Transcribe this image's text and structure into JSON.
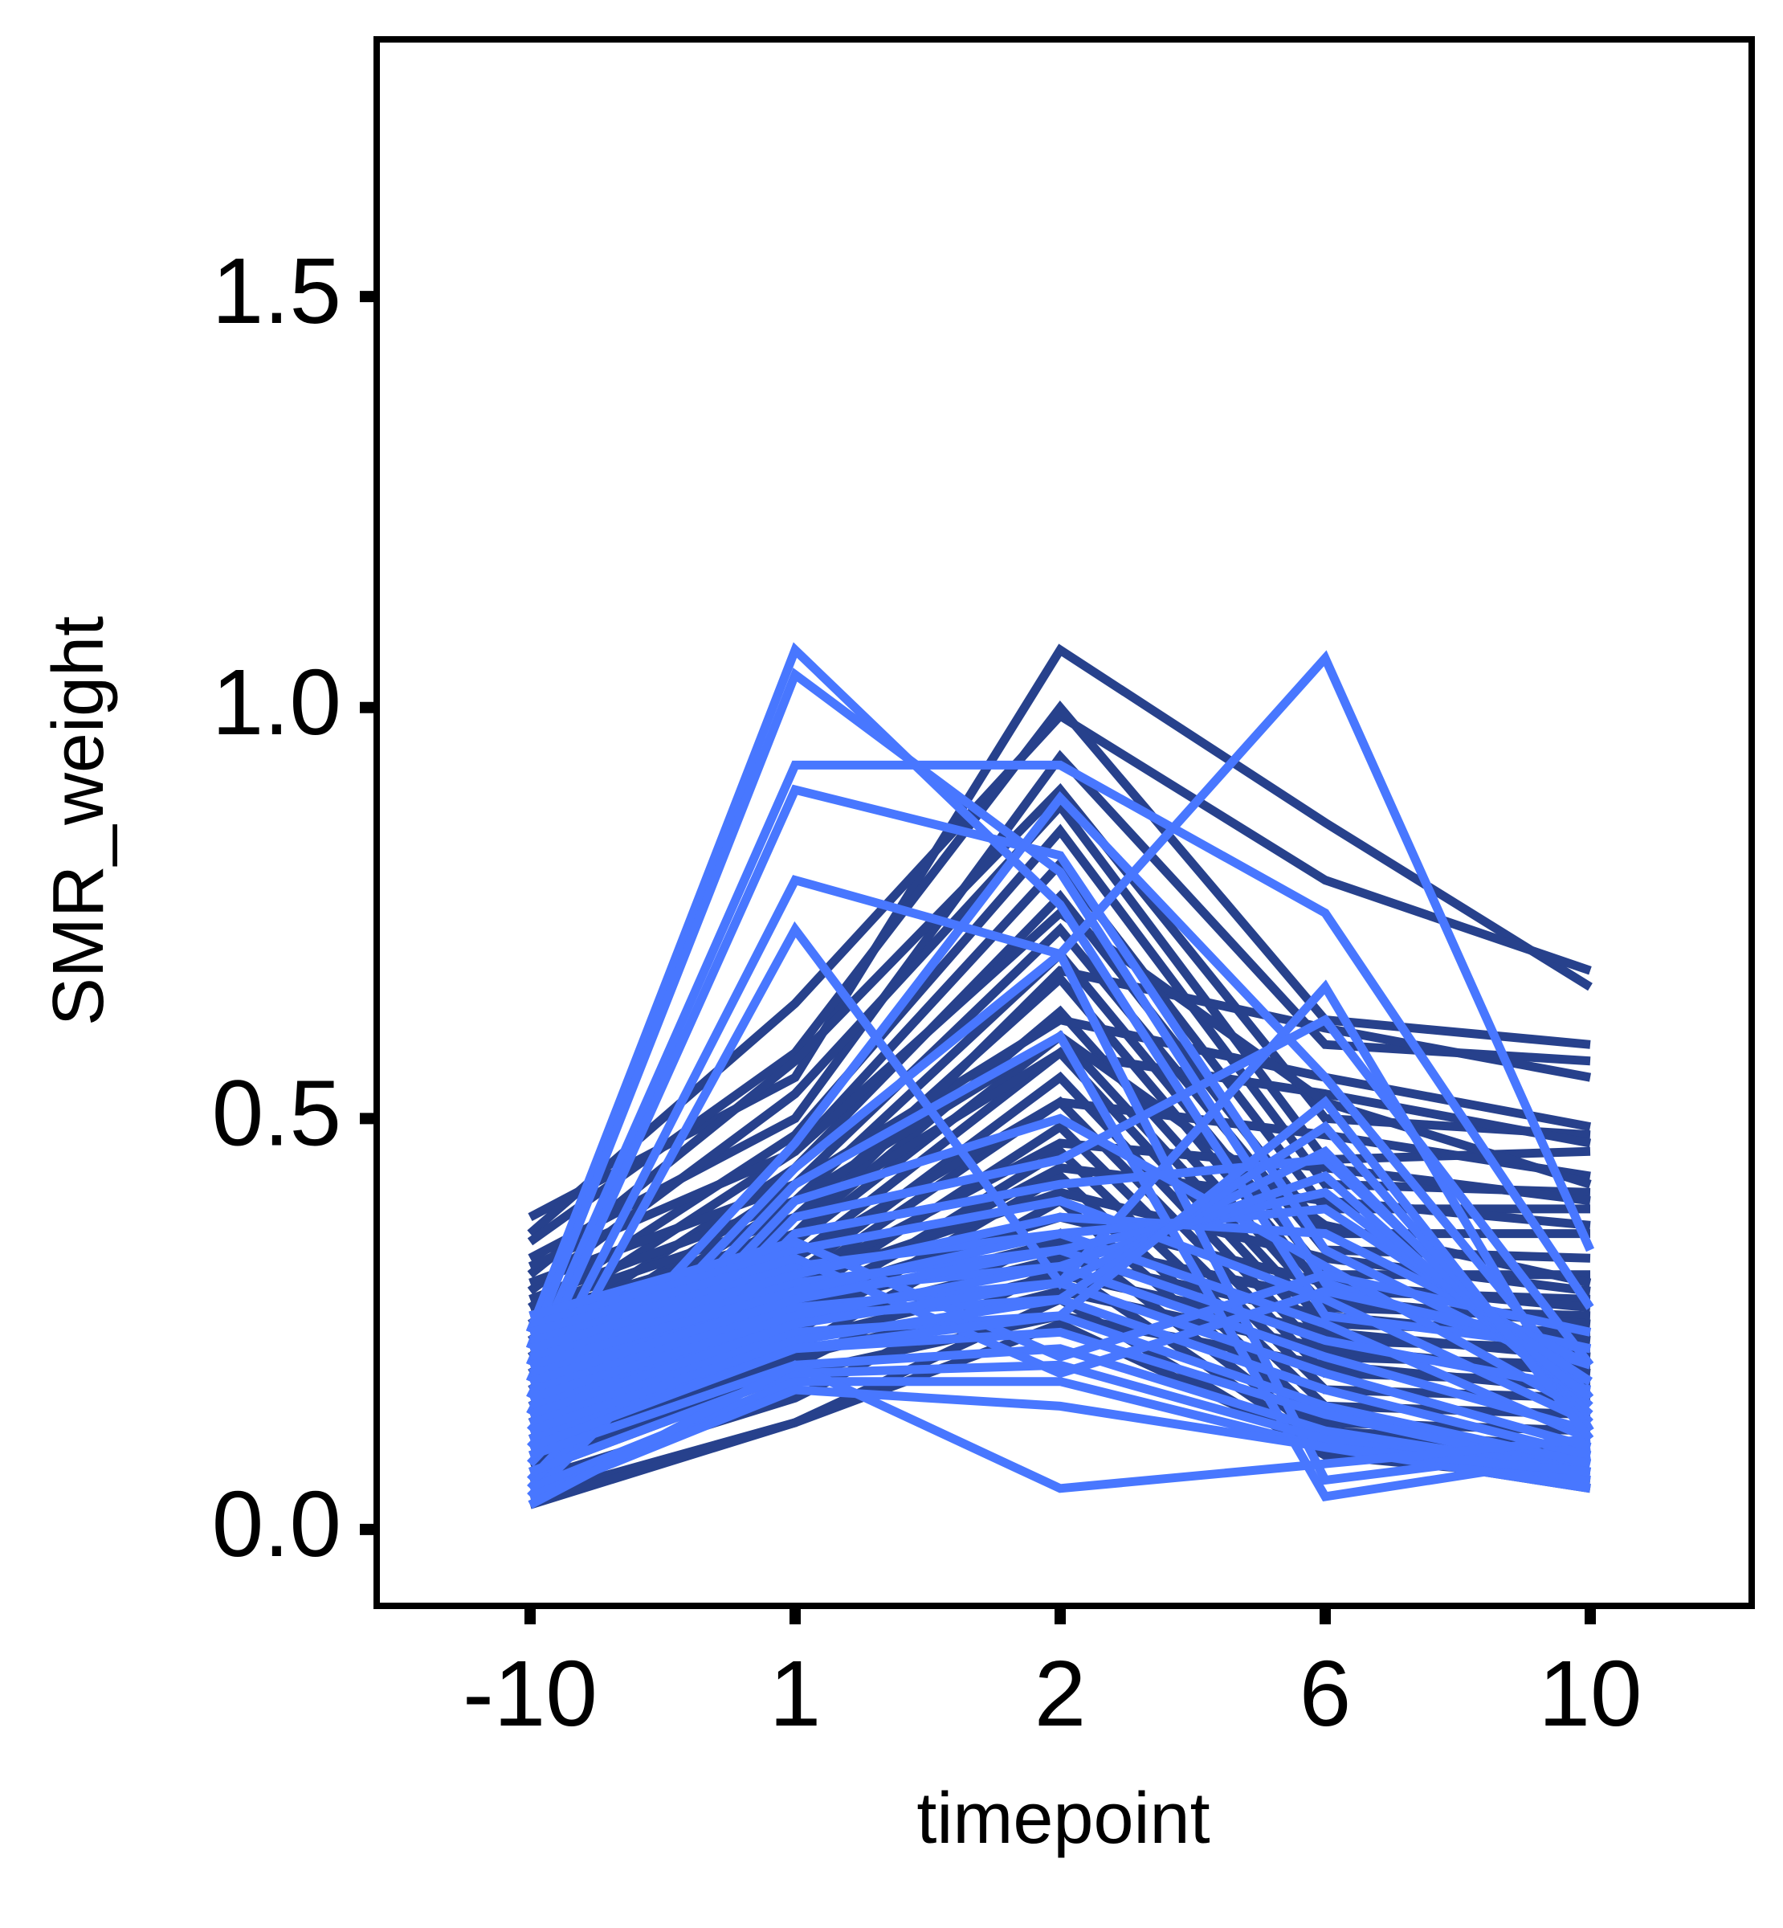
{
  "chart_data": {
    "type": "line",
    "title": "",
    "xlabel": "timepoint",
    "ylabel": "SMR_weight",
    "categories": [
      "-10",
      "1",
      "2",
      "6",
      "10"
    ],
    "ylim": [
      -0.09,
      1.81
    ],
    "yticks": [
      0.0,
      0.5,
      1.0,
      1.5
    ],
    "ytick_labels": [
      "0.0",
      "0.5",
      "1.0",
      "1.5"
    ],
    "grid": false,
    "legend": "none",
    "colors": {
      "dark": "#27418C",
      "light": "#4877FF",
      "axis": "#000000",
      "background": "#FFFFFF"
    },
    "series_groups": [
      {
        "color": "#27418C",
        "series": [
          {
            "values": [
              0.38,
              0.55,
              1.07,
              0.86,
              0.66
            ]
          },
          {
            "values": [
              0.36,
              0.64,
              0.99,
              0.79,
              0.68
            ]
          },
          {
            "values": [
              0.35,
              0.58,
              1.0,
              0.62,
              0.59
            ]
          },
          {
            "values": [
              0.33,
              0.5,
              0.94,
              0.59,
              0.57
            ]
          },
          {
            "values": [
              0.31,
              0.57,
              0.9,
              0.5,
              0.48
            ]
          },
          {
            "values": [
              0.29,
              0.53,
              0.88,
              0.45,
              0.46
            ]
          },
          {
            "values": [
              0.27,
              0.48,
              0.85,
              0.42,
              0.41
            ]
          },
          {
            "values": [
              0.25,
              0.46,
              0.81,
              0.39,
              0.39
            ]
          },
          {
            "values": [
              0.23,
              0.44,
              0.77,
              0.36,
              0.36
            ]
          },
          {
            "values": [
              0.21,
              0.42,
              0.73,
              0.34,
              0.33
            ]
          },
          {
            "values": [
              0.2,
              0.4,
              0.7,
              0.31,
              0.31
            ]
          },
          {
            "values": [
              0.19,
              0.38,
              0.67,
              0.29,
              0.28
            ]
          },
          {
            "values": [
              0.18,
              0.36,
              0.63,
              0.27,
              0.26
            ]
          },
          {
            "values": [
              0.17,
              0.35,
              0.6,
              0.25,
              0.24
            ]
          },
          {
            "values": [
              0.16,
              0.33,
              0.58,
              0.23,
              0.22
            ]
          },
          {
            "values": [
              0.15,
              0.31,
              0.55,
              0.21,
              0.2
            ]
          },
          {
            "values": [
              0.14,
              0.3,
              0.52,
              0.19,
              0.18
            ]
          },
          {
            "values": [
              0.13,
              0.28,
              0.49,
              0.17,
              0.16
            ]
          },
          {
            "values": [
              0.12,
              0.26,
              0.46,
              0.15,
              0.14
            ]
          },
          {
            "values": [
              0.11,
              0.24,
              0.43,
              0.13,
              0.12
            ]
          },
          {
            "values": [
              0.1,
              0.22,
              0.4,
              0.12,
              0.1
            ]
          },
          {
            "values": [
              0.08,
              0.2,
              0.36,
              0.11,
              0.09
            ]
          },
          {
            "values": [
              0.06,
              0.16,
              0.32,
              0.1,
              0.07
            ]
          },
          {
            "values": [
              0.04,
              0.13,
              0.28,
              0.09,
              0.06
            ]
          },
          {
            "values": [
              0.03,
              0.13,
              0.25,
              0.1,
              0.05
            ]
          },
          {
            "values": [
              0.3,
              0.42,
              0.62,
              0.55,
              0.49
            ]
          },
          {
            "values": [
              0.27,
              0.38,
              0.58,
              0.53,
              0.47
            ]
          },
          {
            "values": [
              0.24,
              0.33,
              0.52,
              0.48,
              0.43
            ]
          },
          {
            "values": [
              0.22,
              0.3,
              0.47,
              0.44,
              0.4
            ]
          },
          {
            "values": [
              0.21,
              0.27,
              0.44,
              0.4,
              0.37
            ]
          },
          {
            "values": [
              0.26,
              0.36,
              0.68,
              0.61,
              0.55
            ]
          },
          {
            "values": [
              0.32,
              0.46,
              0.75,
              0.52,
              0.42
            ]
          },
          {
            "values": [
              0.28,
              0.4,
              0.6,
              0.37,
              0.3
            ]
          },
          {
            "values": [
              0.19,
              0.3,
              0.41,
              0.33,
              0.29
            ]
          },
          {
            "values": [
              0.17,
              0.28,
              0.38,
              0.3,
              0.27
            ]
          },
          {
            "values": [
              0.15,
              0.27,
              0.35,
              0.28,
              0.25
            ]
          },
          {
            "values": [
              0.14,
              0.25,
              0.33,
              0.26,
              0.23
            ]
          },
          {
            "values": [
              0.12,
              0.23,
              0.31,
              0.24,
              0.21
            ]
          },
          {
            "values": [
              0.09,
              0.21,
              0.29,
              0.22,
              0.19
            ]
          },
          {
            "values": [
              0.07,
              0.19,
              0.26,
              0.2,
              0.17
            ]
          }
        ]
      },
      {
        "color": "#4877FF",
        "series": [
          {
            "values": [
              0.24,
              1.07,
              0.76,
              0.26,
              0.22
            ]
          },
          {
            "values": [
              0.22,
              1.04,
              0.8,
              0.3,
              0.2
            ]
          },
          {
            "values": [
              0.2,
              0.93,
              0.93,
              0.75,
              0.27
            ]
          },
          {
            "values": [
              0.18,
              0.9,
              0.82,
              0.34,
              0.18
            ]
          },
          {
            "values": [
              0.16,
              0.79,
              0.7,
              1.06,
              0.34
            ]
          },
          {
            "values": [
              0.14,
              0.73,
              0.3,
              0.66,
              0.12
            ]
          },
          {
            "values": [
              0.12,
              0.47,
              0.89,
              0.55,
              0.16
            ]
          },
          {
            "values": [
              0.1,
              0.44,
              0.7,
              0.06,
              0.1
            ]
          },
          {
            "values": [
              0.08,
              0.42,
              0.6,
              0.04,
              0.09
            ]
          },
          {
            "values": [
              0.06,
              0.4,
              0.5,
              0.32,
              0.14
            ]
          },
          {
            "values": [
              0.05,
              0.38,
              0.45,
              0.62,
              0.2
            ]
          },
          {
            "values": [
              0.04,
              0.36,
              0.42,
              0.45,
              0.15
            ]
          },
          {
            "values": [
              0.25,
              0.34,
              0.4,
              0.28,
              0.13
            ]
          },
          {
            "values": [
              0.23,
              0.32,
              0.36,
              0.25,
              0.11
            ]
          },
          {
            "values": [
              0.21,
              0.3,
              0.34,
              0.23,
              0.17
            ]
          },
          {
            "values": [
              0.19,
              0.29,
              0.32,
              0.21,
              0.12
            ]
          },
          {
            "values": [
              0.17,
              0.27,
              0.3,
              0.19,
              0.1
            ]
          },
          {
            "values": [
              0.15,
              0.26,
              0.28,
              0.17,
              0.09
            ]
          },
          {
            "values": [
              0.13,
              0.24,
              0.26,
              0.15,
              0.08
            ]
          },
          {
            "values": [
              0.11,
              0.22,
              0.24,
              0.14,
              0.07
            ]
          },
          {
            "values": [
              0.09,
              0.2,
              0.22,
              0.12,
              0.07
            ]
          },
          {
            "values": [
              0.07,
              0.19,
              0.2,
              0.11,
              0.06
            ]
          },
          {
            "values": [
              0.05,
              0.18,
              0.18,
              0.1,
              0.05
            ]
          },
          {
            "values": [
              0.04,
              0.17,
              0.15,
              0.1,
              0.07
            ]
          },
          {
            "values": [
              0.03,
              0.2,
              0.05,
              0.08,
              0.11
            ]
          },
          {
            "values": [
              0.26,
              0.35,
              0.21,
              0.31,
              0.24
            ]
          },
          {
            "values": [
              0.24,
              0.33,
              0.19,
              0.29,
              0.22
            ]
          },
          {
            "values": [
              0.22,
              0.31,
              0.38,
              0.36,
              0.2
            ]
          },
          {
            "values": [
              0.2,
              0.29,
              0.36,
              0.39,
              0.18
            ]
          },
          {
            "values": [
              0.18,
              0.28,
              0.34,
              0.41,
              0.16
            ]
          },
          {
            "values": [
              0.16,
              0.26,
              0.32,
              0.43,
              0.14
            ]
          },
          {
            "values": [
              0.14,
              0.25,
              0.3,
              0.46,
              0.13
            ]
          },
          {
            "values": [
              0.12,
              0.23,
              0.28,
              0.49,
              0.12
            ]
          },
          {
            "values": [
              0.1,
              0.22,
              0.26,
              0.52,
              0.11
            ]
          }
        ]
      }
    ]
  },
  "axes": {
    "x_title": "timepoint",
    "y_title": "SMR_weight",
    "x_ticks": [
      "-10",
      "1",
      "2",
      "6",
      "10"
    ],
    "y_ticks": [
      "0.0",
      "0.5",
      "1.0",
      "1.5"
    ]
  }
}
